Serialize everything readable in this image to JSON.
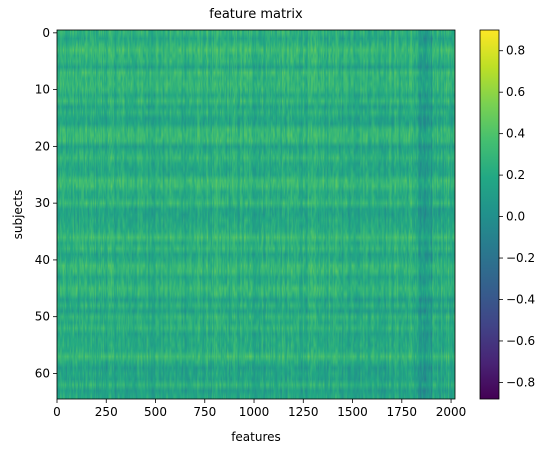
{
  "chart_data": {
    "type": "heatmap",
    "title": "feature matrix",
    "xlabel": "features",
    "ylabel": "subjects",
    "xlim": [
      0,
      2020
    ],
    "ylim": [
      65,
      0
    ],
    "n_rows": 65,
    "x_ticks": [
      0,
      250,
      500,
      750,
      1000,
      1250,
      1500,
      1750,
      2000
    ],
    "y_ticks": [
      0,
      10,
      20,
      30,
      40,
      50,
      60
    ],
    "colorbar": {
      "colormap": "viridis",
      "range": [
        -0.88,
        0.9
      ],
      "ticks": [
        0.8,
        0.6,
        0.4,
        0.2,
        0.0,
        -0.2,
        -0.4,
        -0.6,
        -0.8
      ],
      "tick_labels": [
        "0.8",
        "0.6",
        "0.4",
        "0.2",
        "0.0",
        "−0.2",
        "−0.4",
        "−0.6",
        "−0.8"
      ]
    },
    "value_summary": {
      "typical_range": [
        0.0,
        0.45
      ],
      "dark_column_band_features": [
        1830,
        1900
      ]
    },
    "grid": false
  }
}
